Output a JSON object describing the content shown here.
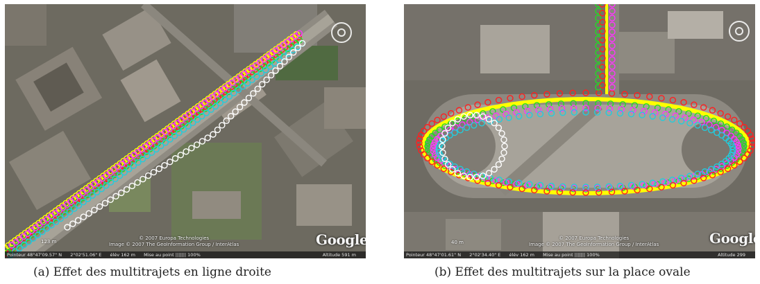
{
  "panels": [
    {
      "id": "a",
      "caption": "(a) Effet des multitrajets en ligne droite",
      "status_bar": {
        "pointer": "Pointeur 48°47'09.57\" N",
        "lon": "2°02'51.06\" E",
        "elev": "élév  162 m",
        "streaming": "Mise au point ||||||| 100%",
        "altitude": "Altitude  591 m"
      },
      "scale": "123 m",
      "copyright_line1": "© 2007 Europa Technologies",
      "copyright_line2": "Image © 2007 The GeoInformation Group / InterAtlas",
      "logo": "Google"
    },
    {
      "id": "b",
      "caption": "(b) Effet des multitrajets sur la place ovale",
      "status_bar": {
        "pointer": "Pointeur 48°47'01.61\" N",
        "lon": "2°02'34.40\" E",
        "elev": "élév  162 m",
        "streaming": "Mise au point ||||||| 100%",
        "altitude": "Altitude  299"
      },
      "scale": "40 m",
      "copyright_line1": "© 2007 Europa Technologies",
      "copyright_line2": "Image © 2007 The GeoInformation Group / InterAtlas",
      "logo": "Google"
    }
  ],
  "track_colors": {
    "red": "#ff2020",
    "yellow": "#ffff00",
    "green": "#22dd22",
    "magenta": "#ff33ff",
    "cyan": "#22ccdd",
    "white": "#ffffff"
  },
  "icons": [
    "navigation-compass-icon"
  ]
}
